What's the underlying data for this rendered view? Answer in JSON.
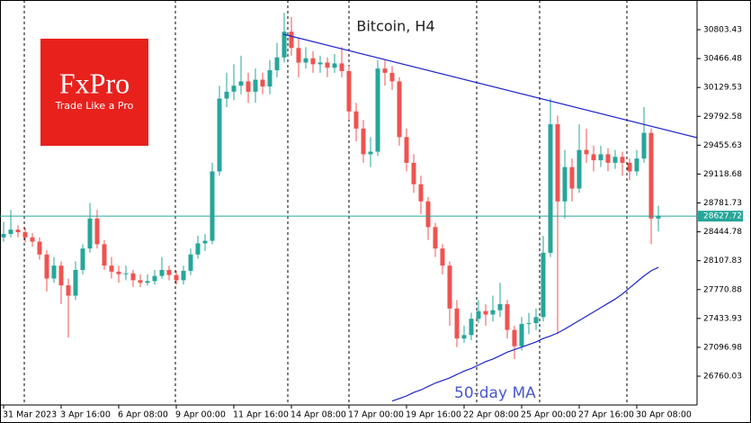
{
  "chart_data": {
    "type": "candlestick",
    "title": "Bitcoin, H4",
    "brand": {
      "name": "FxPro",
      "tagline": "Trade Like a Pro"
    },
    "up_color": "#26a69a",
    "down_color": "#ef5350",
    "categories": [
      "31 Mar 2023",
      null,
      null,
      null,
      null,
      null,
      null,
      null,
      "3 Apr 16:00",
      null,
      null,
      null,
      null,
      null,
      null,
      null,
      "6 Apr 08:00",
      null,
      null,
      null,
      null,
      null,
      null,
      null,
      "9 Apr 00:00",
      null,
      null,
      null,
      null,
      null,
      null,
      null,
      "11 Apr 16:00",
      null,
      null,
      null,
      null,
      null,
      null,
      null,
      "14 Apr 08:00",
      null,
      null,
      null,
      null,
      null,
      null,
      null,
      "17 Apr 00:00",
      null,
      null,
      null,
      null,
      null,
      null,
      null,
      "19 Apr 16:00",
      null,
      null,
      null,
      null,
      null,
      null,
      null,
      "22 Apr 08:00",
      null,
      null,
      null,
      null,
      null,
      null,
      null,
      "25 Apr 00:00",
      null,
      null,
      null,
      null,
      null,
      null,
      null,
      "27 Apr 16:00",
      null,
      null,
      null,
      null,
      null,
      null,
      null,
      "30 Apr 08:00",
      null,
      null,
      null
    ],
    "ohlc": [
      [
        28380,
        28560,
        28330,
        28420
      ],
      [
        28420,
        28700,
        28380,
        28470
      ],
      [
        28470,
        28520,
        28380,
        28440
      ],
      [
        28440,
        28490,
        28320,
        28380
      ],
      [
        28380,
        28430,
        28270,
        28330
      ],
      [
        28330,
        28380,
        28120,
        28180
      ],
      [
        28180,
        28230,
        27750,
        27900
      ],
      [
        27900,
        28150,
        27850,
        28050
      ],
      [
        28050,
        28100,
        27600,
        27820
      ],
      [
        27820,
        27900,
        27210,
        27700
      ],
      [
        27700,
        28100,
        27650,
        28000
      ],
      [
        28000,
        28300,
        27950,
        28250
      ],
      [
        28250,
        28780,
        28200,
        28600
      ],
      [
        28600,
        28700,
        28250,
        28300
      ],
      [
        28300,
        28350,
        28000,
        28050
      ],
      [
        28050,
        28150,
        27900,
        27980
      ],
      [
        27980,
        28050,
        27850,
        27950
      ],
      [
        27950,
        28050,
        27880,
        27960
      ],
      [
        27960,
        28000,
        27800,
        27880
      ],
      [
        27880,
        27950,
        27800,
        27850
      ],
      [
        27850,
        27950,
        27820,
        27870
      ],
      [
        27870,
        28000,
        27830,
        27930
      ],
      [
        27930,
        28150,
        27900,
        28000
      ],
      [
        28000,
        28050,
        27880,
        27940
      ],
      [
        27940,
        27990,
        27830,
        27880
      ],
      [
        27880,
        28050,
        27830,
        27990
      ],
      [
        27990,
        28250,
        27940,
        28180
      ],
      [
        28180,
        28400,
        28130,
        28310
      ],
      [
        28310,
        28420,
        28220,
        28340
      ],
      [
        28340,
        29250,
        28300,
        29150
      ],
      [
        29150,
        30150,
        29100,
        30000
      ],
      [
        30000,
        30300,
        29900,
        30080
      ],
      [
        30080,
        30400,
        29980,
        30150
      ],
      [
        30150,
        30500,
        30050,
        30200
      ],
      [
        30200,
        30300,
        29950,
        30080
      ],
      [
        30080,
        30350,
        29950,
        30220
      ],
      [
        30220,
        30300,
        30050,
        30140
      ],
      [
        30140,
        30450,
        30050,
        30330
      ],
      [
        30330,
        30650,
        30250,
        30480
      ],
      [
        30480,
        31000,
        30420,
        30780
      ],
      [
        30780,
        30950,
        30500,
        30590
      ],
      [
        30590,
        30700,
        30250,
        30420
      ],
      [
        30420,
        30600,
        30350,
        30470
      ],
      [
        30470,
        30550,
        30300,
        30400
      ],
      [
        30400,
        30500,
        30300,
        30420
      ],
      [
        30420,
        30480,
        30250,
        30360
      ],
      [
        30360,
        30520,
        30300,
        30410
      ],
      [
        30410,
        30600,
        30250,
        30320
      ],
      [
        30320,
        30380,
        29750,
        29850
      ],
      [
        29850,
        29950,
        29500,
        29650
      ],
      [
        29650,
        29750,
        29250,
        29350
      ],
      [
        29350,
        29550,
        29200,
        29380
      ],
      [
        29380,
        30450,
        29330,
        30350
      ],
      [
        30350,
        30450,
        30150,
        30300
      ],
      [
        30300,
        30380,
        30100,
        30200
      ],
      [
        30200,
        30250,
        29450,
        29550
      ],
      [
        29550,
        29650,
        29150,
        29250
      ],
      [
        29250,
        29350,
        28900,
        29000
      ],
      [
        29000,
        29100,
        28650,
        28800
      ],
      [
        28800,
        28850,
        28350,
        28500
      ],
      [
        28500,
        28550,
        28150,
        28250
      ],
      [
        28250,
        28300,
        27950,
        28050
      ],
      [
        28050,
        28100,
        27350,
        27550
      ],
      [
        27550,
        27650,
        27100,
        27200
      ],
      [
        27200,
        27350,
        27150,
        27240
      ],
      [
        27240,
        27500,
        27180,
        27430
      ],
      [
        27430,
        27650,
        27380,
        27520
      ],
      [
        27520,
        27600,
        27350,
        27480
      ],
      [
        27480,
        27700,
        27400,
        27530
      ],
      [
        27530,
        27850,
        27450,
        27600
      ],
      [
        27600,
        27650,
        27200,
        27300
      ],
      [
        27300,
        27350,
        26960,
        27110
      ],
      [
        27110,
        27450,
        27060,
        27370
      ],
      [
        27370,
        27500,
        27250,
        27380
      ],
      [
        27380,
        27550,
        27300,
        27450
      ],
      [
        27450,
        28400,
        27400,
        28200
      ],
      [
        28200,
        30000,
        28150,
        29700
      ],
      [
        29700,
        29800,
        27250,
        28800
      ],
      [
        28800,
        29400,
        28600,
        29200
      ],
      [
        29200,
        29300,
        28800,
        28950
      ],
      [
        28950,
        29700,
        28900,
        29400
      ],
      [
        29400,
        29650,
        29250,
        29350
      ],
      [
        29350,
        29450,
        29150,
        29280
      ],
      [
        29280,
        29450,
        29200,
        29350
      ],
      [
        29350,
        29420,
        29150,
        29250
      ],
      [
        29250,
        29400,
        29180,
        29320
      ],
      [
        29320,
        29380,
        29100,
        29250
      ],
      [
        29250,
        29300,
        29050,
        29150
      ],
      [
        29150,
        29400,
        29100,
        29300
      ],
      [
        29300,
        29900,
        29250,
        29600
      ],
      [
        29600,
        29650,
        28300,
        28600
      ],
      [
        28600,
        28750,
        28450,
        28630
      ]
    ],
    "series": [
      {
        "name": "50-day MA",
        "color": "#1e24c8",
        "values": [
          null,
          null,
          null,
          null,
          null,
          null,
          null,
          null,
          null,
          null,
          null,
          null,
          null,
          null,
          null,
          null,
          null,
          null,
          null,
          null,
          null,
          null,
          null,
          null,
          null,
          null,
          null,
          null,
          null,
          null,
          null,
          null,
          null,
          null,
          null,
          null,
          null,
          null,
          null,
          null,
          null,
          null,
          null,
          null,
          null,
          null,
          null,
          null,
          null,
          null,
          null,
          null,
          null,
          null,
          26470,
          26500,
          26530,
          26570,
          26600,
          26640,
          26680,
          26710,
          26740,
          26780,
          26820,
          26850,
          26890,
          26930,
          26960,
          27000,
          27040,
          27070,
          27100,
          27130,
          27160,
          27200,
          27230,
          27264,
          27310,
          27360,
          27410,
          27460,
          27510,
          27560,
          27610,
          27660,
          27720,
          27790,
          27860,
          27930,
          27990,
          28030
        ]
      }
    ],
    "last_price": 28627.72,
    "ylim": [
      26424,
      31150
    ],
    "yticks": [
      30803.43,
      30466.48,
      30129.53,
      29792.58,
      29455.63,
      29118.68,
      28781.73,
      28444.78,
      28107.83,
      27770.88,
      27433.93,
      27096.98,
      26760.03
    ]
  }
}
